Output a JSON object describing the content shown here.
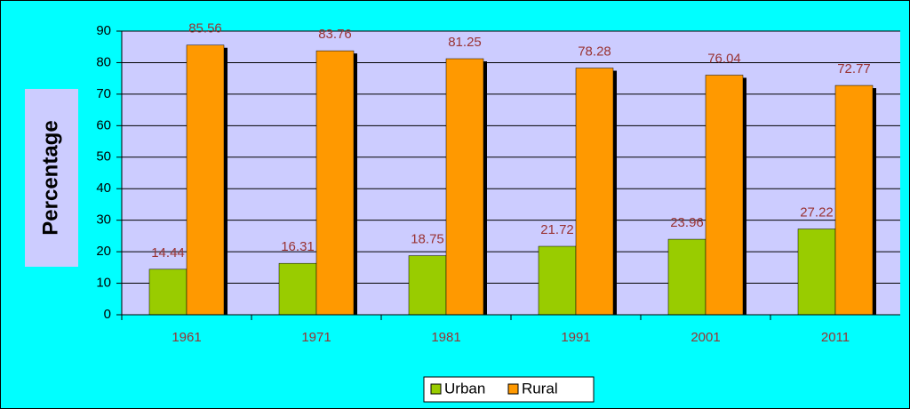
{
  "chart_data": {
    "type": "bar",
    "y_label": "Percentage",
    "categories": [
      "1961",
      "1971",
      "1981",
      "1991",
      "2001",
      "2011"
    ],
    "series": [
      {
        "name": "Urban",
        "color": "#99cc00",
        "values": [
          14.44,
          16.31,
          18.75,
          21.72,
          23.96,
          27.22
        ]
      },
      {
        "name": "Rural",
        "color": "#ff9900",
        "values": [
          85.56,
          83.76,
          81.25,
          78.28,
          76.04,
          72.77
        ]
      }
    ],
    "ylim": [
      0,
      90
    ],
    "yticks": [
      0,
      10,
      20,
      30,
      40,
      50,
      60,
      70,
      80,
      90
    ],
    "grid": true
  }
}
